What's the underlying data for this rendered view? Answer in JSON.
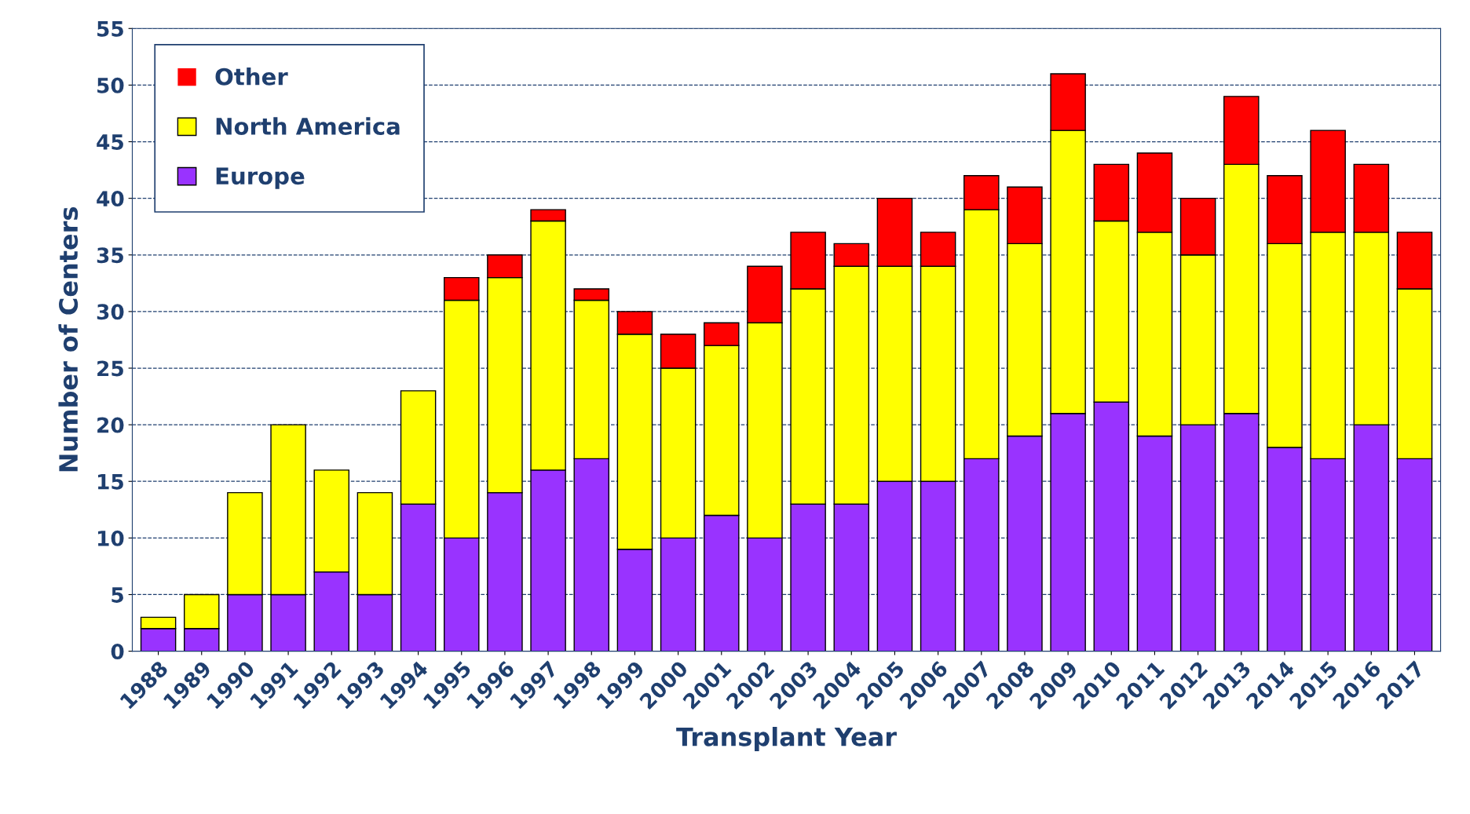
{
  "chart_data": {
    "type": "bar",
    "stacked": true,
    "xlabel": "Transplant Year",
    "ylabel": "Number of Centers",
    "categories": [
      "1988",
      "1989",
      "1990",
      "1991",
      "1992",
      "1993",
      "1994",
      "1995",
      "1996",
      "1997",
      "1998",
      "1999",
      "2000",
      "2001",
      "2002",
      "2003",
      "2004",
      "2005",
      "2006",
      "2007",
      "2008",
      "2009",
      "2010",
      "2011",
      "2012",
      "2013",
      "2014",
      "2015",
      "2016",
      "2017"
    ],
    "series": [
      {
        "name": "Europe",
        "color": "#9933ff",
        "values": [
          2,
          2,
          5,
          5,
          7,
          5,
          13,
          10,
          14,
          16,
          17,
          9,
          10,
          12,
          10,
          13,
          13,
          15,
          15,
          17,
          19,
          21,
          22,
          19,
          20,
          21,
          18,
          17,
          20,
          17
        ]
      },
      {
        "name": "North America",
        "color": "#ffff00",
        "values": [
          1,
          3,
          9,
          15,
          9,
          9,
          10,
          21,
          19,
          22,
          14,
          19,
          15,
          15,
          19,
          19,
          21,
          19,
          19,
          22,
          17,
          25,
          16,
          18,
          15,
          22,
          18,
          20,
          17,
          15
        ]
      },
      {
        "name": "Other",
        "color": "#ff0000",
        "values": [
          0,
          0,
          0,
          0,
          0,
          0,
          0,
          2,
          2,
          1,
          1,
          2,
          3,
          2,
          5,
          5,
          2,
          6,
          3,
          3,
          5,
          5,
          5,
          7,
          5,
          6,
          6,
          9,
          6,
          5
        ]
      }
    ],
    "ylim": [
      0,
      55
    ],
    "yticks": [
      0,
      5,
      10,
      15,
      20,
      25,
      30,
      35,
      40,
      45,
      50,
      55
    ],
    "grid": "y",
    "legend": "top left"
  }
}
